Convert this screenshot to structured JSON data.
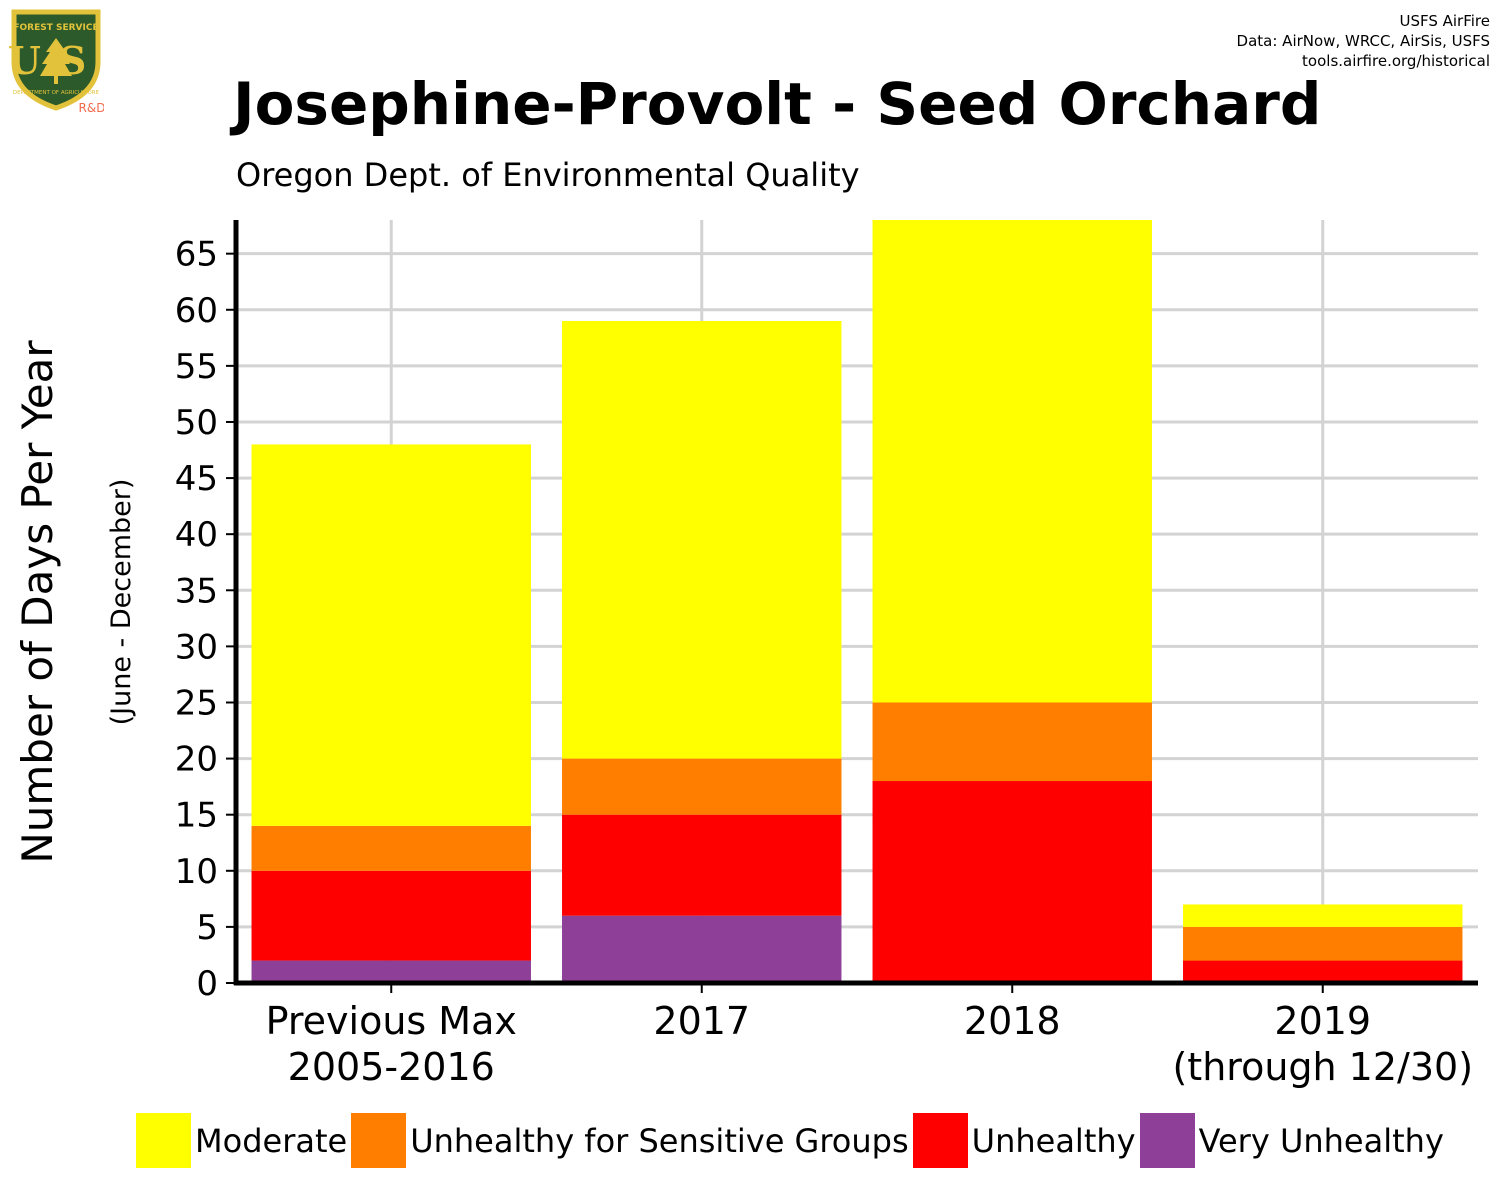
{
  "header": {
    "credits": [
      "USFS AirFire",
      "Data: AirNow, WRCC, AirSis, USFS",
      "tools.airfire.org/historical"
    ],
    "logo": {
      "top_text": "FOREST SERVICE",
      "letters": "US",
      "bottom_text": "DEPARTMENT OF AGRICULTURE",
      "badge": "R&D"
    }
  },
  "chart_data": {
    "type": "bar",
    "stacked": true,
    "title": "Josephine-Provolt - Seed Orchard",
    "subtitle": "Oregon Dept. of Environmental Quality",
    "ylabel": "Number of Days Per Year",
    "ylabel_sub": "(June - December)",
    "xlabel": "",
    "categories": [
      [
        "Previous Max",
        "2005-2016"
      ],
      [
        "2017"
      ],
      [
        "2018"
      ],
      [
        "2019",
        "(through 12/30)"
      ]
    ],
    "series": [
      {
        "name": "Very Unhealthy",
        "color": "#8E3F97",
        "values": [
          2,
          6,
          0,
          0
        ]
      },
      {
        "name": "Unhealthy",
        "color": "#FF0000",
        "values": [
          8,
          9,
          18,
          2
        ]
      },
      {
        "name": "Unhealthy for Sensitive Groups",
        "color": "#FF7E00",
        "values": [
          4,
          5,
          7,
          3
        ]
      },
      {
        "name": "Moderate",
        "color": "#FFFF00",
        "values": [
          34,
          39,
          43,
          2
        ]
      }
    ],
    "legend_order": [
      "Moderate",
      "Unhealthy for Sensitive Groups",
      "Unhealthy",
      "Very Unhealthy"
    ],
    "ylim": [
      0,
      68
    ],
    "yticks": [
      0,
      5,
      10,
      15,
      20,
      25,
      30,
      35,
      40,
      45,
      50,
      55,
      60,
      65
    ],
    "grid": true,
    "legend_position": "bottom"
  }
}
